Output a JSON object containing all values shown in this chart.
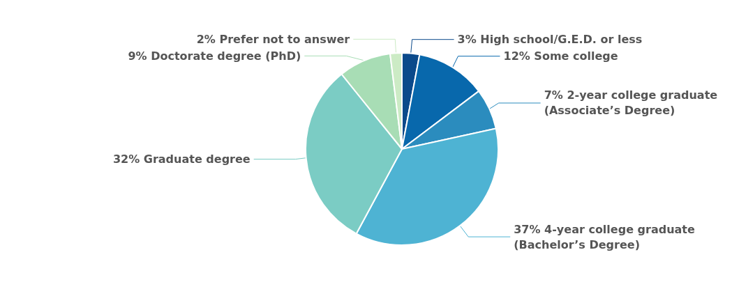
{
  "chart_data": {
    "type": "pie",
    "categories": [
      "High school/G.E.D. or less",
      "Some college",
      "2-year college graduate (Associate’s Degree)",
      "4-year college graduate (Bachelor’s Degree)",
      "Graduate degree",
      "Doctorate degree (PhD)",
      "Prefer not to answer"
    ],
    "values": [
      3,
      12,
      7,
      37,
      32,
      9,
      2
    ],
    "value_labels": [
      "3%",
      "12%",
      "7%",
      "37%",
      "32%",
      "9%",
      "2%"
    ],
    "colors": [
      "#0b4a8b",
      "#0868ac",
      "#2b8cbe",
      "#4eb3d3",
      "#7bccc4",
      "#a8ddb5",
      "#ccebc5"
    ],
    "legend": false
  }
}
